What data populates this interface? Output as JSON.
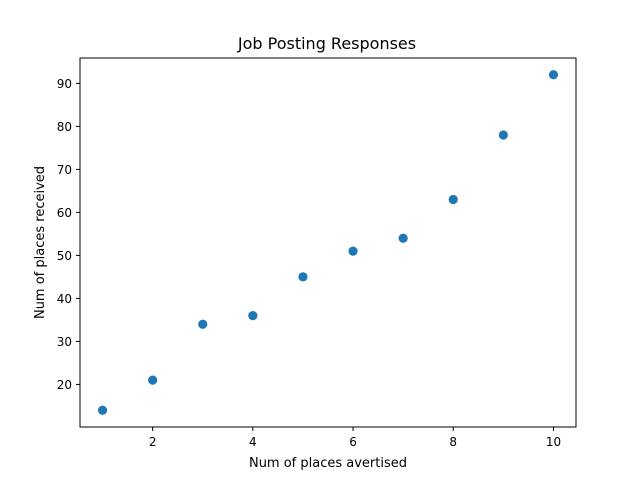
{
  "chart_data": {
    "type": "scatter",
    "title": "Job Posting Responses",
    "xlabel": "Num of places avertised",
    "ylabel": "Num of places received",
    "x": [
      1,
      2,
      3,
      4,
      5,
      6,
      7,
      8,
      9,
      10
    ],
    "y": [
      14,
      21,
      34,
      36,
      45,
      51,
      54,
      63,
      78,
      92
    ],
    "xlim": [
      0.55,
      10.45
    ],
    "ylim": [
      10.1,
      95.9
    ],
    "xticks": [
      2,
      4,
      6,
      8,
      10
    ],
    "yticks": [
      20,
      30,
      40,
      50,
      60,
      70,
      80,
      90
    ],
    "grid": false,
    "marker_color": "#1f77b4"
  }
}
